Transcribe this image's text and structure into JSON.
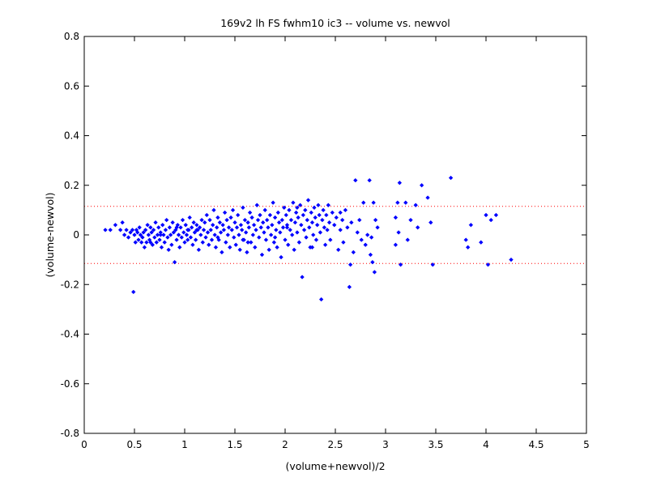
{
  "chart_data": {
    "type": "scatter",
    "title": "169v2 lh FS fwhm10 ic3 -- volume vs. newvol",
    "xlabel": "(volume+newvol)/2",
    "ylabel": "(volume-newvol)",
    "xlim": [
      0,
      5
    ],
    "ylim": [
      -0.8,
      0.8
    ],
    "xticks": [
      "0",
      "0.5",
      "1",
      "1.5",
      "2",
      "2.5",
      "3",
      "3.5",
      "4",
      "4.5",
      "5"
    ],
    "yticks": [
      "0.8",
      "0.6",
      "0.4",
      "0.2",
      "0",
      "-0.2",
      "-0.4",
      "-0.6",
      "-0.8"
    ],
    "grid": false,
    "marker_color": "#0000ff",
    "reference_line_color": "#ff0000",
    "reference_lines": [
      0.115,
      -0.115
    ],
    "series": [
      {
        "points": [
          [
            0.21,
            0.02
          ],
          [
            0.26,
            0.02
          ],
          [
            0.31,
            0.04
          ],
          [
            0.36,
            0.02
          ],
          [
            0.38,
            0.05
          ],
          [
            0.4,
            0.0
          ],
          [
            0.42,
            0.02
          ],
          [
            0.44,
            -0.01
          ],
          [
            0.46,
            0.01
          ],
          [
            0.48,
            0.02
          ],
          [
            0.49,
            -0.23
          ],
          [
            0.5,
            0.0
          ],
          [
            0.51,
            -0.03
          ],
          [
            0.52,
            0.02
          ],
          [
            0.53,
            0.01
          ],
          [
            0.54,
            -0.02
          ],
          [
            0.55,
            0.03
          ],
          [
            0.56,
            0.0
          ],
          [
            0.57,
            -0.03
          ],
          [
            0.58,
            -0.01
          ],
          [
            0.59,
            0.01
          ],
          [
            0.6,
            -0.05
          ],
          [
            0.61,
            0.02
          ],
          [
            0.62,
            -0.03
          ],
          [
            0.63,
            0.04
          ],
          [
            0.64,
            0.0
          ],
          [
            0.65,
            -0.02
          ],
          [
            0.66,
            0.03
          ],
          [
            0.67,
            0.01
          ],
          [
            0.68,
            -0.04
          ],
          [
            0.69,
            0.02
          ],
          [
            0.7,
            -0.01
          ],
          [
            0.71,
            0.05
          ],
          [
            0.72,
            -0.03
          ],
          [
            0.73,
            0.0
          ],
          [
            0.74,
            0.03
          ],
          [
            0.75,
            -0.02
          ],
          [
            0.76,
            0.01
          ],
          [
            0.77,
            -0.05
          ],
          [
            0.78,
            0.04
          ],
          [
            0.79,
            0.0
          ],
          [
            0.8,
            -0.03
          ],
          [
            0.81,
            0.02
          ],
          [
            0.82,
            0.06
          ],
          [
            0.83,
            -0.01
          ],
          [
            0.84,
            -0.06
          ],
          [
            0.85,
            0.03
          ],
          [
            0.86,
            0.0
          ],
          [
            0.87,
            -0.04
          ],
          [
            0.88,
            0.05
          ],
          [
            0.89,
            0.01
          ],
          [
            0.9,
            -0.11
          ],
          [
            0.91,
            0.02
          ],
          [
            0.92,
            -0.02
          ],
          [
            0.93,
            0.04
          ],
          [
            0.94,
            0.0
          ],
          [
            0.95,
            -0.05
          ],
          [
            0.96,
            0.03
          ],
          [
            0.97,
            -0.01
          ],
          [
            0.98,
            0.06
          ],
          [
            0.99,
            0.01
          ],
          [
            1.0,
            -0.03
          ],
          [
            1.01,
            0.04
          ],
          [
            1.02,
            0.0
          ],
          [
            1.03,
            -0.02
          ],
          [
            1.04,
            0.02
          ],
          [
            1.05,
            0.07
          ],
          [
            1.06,
            -0.01
          ],
          [
            1.07,
            0.03
          ],
          [
            1.08,
            -0.04
          ],
          [
            1.09,
            0.05
          ],
          [
            1.1,
            0.01
          ],
          [
            1.11,
            -0.02
          ],
          [
            1.12,
            0.04
          ],
          [
            1.13,
            0.02
          ],
          [
            1.14,
            -0.06
          ],
          [
            1.15,
            0.03
          ],
          [
            1.16,
            0.0
          ],
          [
            1.17,
            0.06
          ],
          [
            1.18,
            -0.03
          ],
          [
            1.19,
            0.02
          ],
          [
            1.2,
            0.05
          ],
          [
            1.21,
            -0.01
          ],
          [
            1.22,
            0.08
          ],
          [
            1.23,
            0.01
          ],
          [
            1.24,
            -0.04
          ],
          [
            1.25,
            0.06
          ],
          [
            1.26,
            0.02
          ],
          [
            1.27,
            -0.02
          ],
          [
            1.28,
            0.04
          ],
          [
            1.29,
            0.1
          ],
          [
            1.3,
            0.0
          ],
          [
            1.31,
            -0.05
          ],
          [
            1.32,
            0.03
          ],
          [
            1.33,
            0.07
          ],
          [
            1.34,
            -0.02
          ],
          [
            1.35,
            0.05
          ],
          [
            1.36,
            0.01
          ],
          [
            1.37,
            -0.07
          ],
          [
            1.38,
            0.04
          ],
          [
            1.39,
            0.02
          ],
          [
            1.4,
            0.09
          ],
          [
            1.41,
            -0.03
          ],
          [
            1.42,
            0.06
          ],
          [
            1.43,
            0.0
          ],
          [
            1.44,
            0.03
          ],
          [
            1.45,
            -0.05
          ],
          [
            1.46,
            0.07
          ],
          [
            1.47,
            0.02
          ],
          [
            1.48,
            0.1
          ],
          [
            1.49,
            -0.01
          ],
          [
            1.5,
            0.05
          ],
          [
            1.51,
            -0.04
          ],
          [
            1.52,
            0.03
          ],
          [
            1.53,
            0.08
          ],
          [
            1.54,
            0.0
          ],
          [
            1.55,
            -0.06
          ],
          [
            1.56,
            0.04
          ],
          [
            1.57,
            0.02
          ],
          [
            1.58,
            0.11
          ],
          [
            1.59,
            -0.02
          ],
          [
            1.6,
            0.06
          ],
          [
            1.61,
            0.01
          ],
          [
            1.62,
            -0.07
          ],
          [
            1.63,
            0.05
          ],
          [
            1.64,
            0.03
          ],
          [
            1.65,
            0.09
          ],
          [
            1.66,
            -0.03
          ],
          [
            1.67,
            0.07
          ],
          [
            1.68,
            0.0
          ],
          [
            1.69,
            0.04
          ],
          [
            1.7,
            -0.05
          ],
          [
            1.71,
            0.02
          ],
          [
            1.72,
            0.12
          ],
          [
            1.73,
            0.06
          ],
          [
            1.74,
            -0.01
          ],
          [
            1.75,
            0.08
          ],
          [
            1.76,
            0.03
          ],
          [
            1.77,
            -0.08
          ],
          [
            1.78,
            0.05
          ],
          [
            1.79,
            0.01
          ],
          [
            1.8,
            0.1
          ],
          [
            1.81,
            -0.02
          ],
          [
            1.82,
            0.06
          ],
          [
            1.83,
            0.03
          ],
          [
            1.84,
            -0.06
          ],
          [
            1.85,
            0.08
          ],
          [
            1.86,
            0.0
          ],
          [
            1.87,
            0.04
          ],
          [
            1.88,
            0.13
          ],
          [
            1.89,
            -0.03
          ],
          [
            1.9,
            0.07
          ],
          [
            1.91,
            0.02
          ],
          [
            1.92,
            -0.05
          ],
          [
            1.93,
            0.09
          ],
          [
            1.94,
            0.05
          ],
          [
            1.95,
            0.01
          ],
          [
            1.96,
            -0.09
          ],
          [
            1.97,
            0.06
          ],
          [
            1.98,
            0.03
          ],
          [
            1.99,
            0.11
          ],
          [
            2.0,
            -0.02
          ],
          [
            2.01,
            0.08
          ],
          [
            2.02,
            0.04
          ],
          [
            2.03,
            -0.04
          ],
          [
            2.04,
            0.1
          ],
          [
            2.05,
            0.02
          ],
          [
            2.06,
            0.06
          ],
          [
            2.07,
            0.0
          ],
          [
            2.08,
            0.13
          ],
          [
            2.09,
            -0.06
          ],
          [
            2.1,
            0.05
          ],
          [
            2.11,
            0.09
          ],
          [
            2.12,
            0.01
          ],
          [
            2.13,
            0.07
          ],
          [
            2.14,
            -0.03
          ],
          [
            2.15,
            0.12
          ],
          [
            2.16,
            0.04
          ],
          [
            2.17,
            -0.17
          ],
          [
            2.18,
            0.08
          ],
          [
            2.19,
            0.02
          ],
          [
            2.2,
            0.1
          ],
          [
            2.21,
            -0.01
          ],
          [
            2.22,
            0.06
          ],
          [
            2.23,
            0.14
          ],
          [
            2.24,
            0.03
          ],
          [
            2.25,
            -0.05
          ],
          [
            2.26,
            0.09
          ],
          [
            2.27,
            0.05
          ],
          [
            2.28,
            0.0
          ],
          [
            2.29,
            0.11
          ],
          [
            2.3,
            0.07
          ],
          [
            2.31,
            -0.02
          ],
          [
            2.32,
            0.04
          ],
          [
            2.33,
            0.12
          ],
          [
            2.34,
            0.08
          ],
          [
            2.35,
            0.01
          ],
          [
            2.36,
            -0.26
          ],
          [
            2.37,
            0.06
          ],
          [
            2.38,
            0.1
          ],
          [
            2.39,
            0.03
          ],
          [
            2.4,
            -0.04
          ],
          [
            2.41,
            0.08
          ],
          [
            2.42,
            0.02
          ],
          [
            2.43,
            0.12
          ],
          [
            2.44,
            0.05
          ],
          [
            2.45,
            -0.02
          ],
          [
            2.47,
            0.09
          ],
          [
            2.49,
            0.04
          ],
          [
            2.51,
            0.07
          ],
          [
            2.53,
            -0.06
          ],
          [
            2.55,
            0.02
          ],
          [
            2.57,
            0.06
          ],
          [
            2.58,
            -0.03
          ],
          [
            2.6,
            0.1
          ],
          [
            2.62,
            0.03
          ],
          [
            2.64,
            -0.21
          ],
          [
            2.65,
            -0.12
          ],
          [
            2.66,
            0.05
          ],
          [
            2.68,
            -0.07
          ],
          [
            2.7,
            0.22
          ],
          [
            2.72,
            0.01
          ],
          [
            2.74,
            0.06
          ],
          [
            2.76,
            -0.02
          ],
          [
            2.78,
            0.13
          ],
          [
            2.8,
            -0.04
          ],
          [
            2.82,
            0.0
          ],
          [
            2.84,
            0.22
          ],
          [
            2.85,
            -0.08
          ],
          [
            2.86,
            -0.01
          ],
          [
            2.87,
            -0.11
          ],
          [
            2.88,
            0.13
          ],
          [
            2.89,
            -0.15
          ],
          [
            2.9,
            0.06
          ],
          [
            2.92,
            0.03
          ],
          [
            3.1,
            -0.04
          ],
          [
            3.1,
            0.07
          ],
          [
            3.12,
            0.13
          ],
          [
            3.13,
            0.01
          ],
          [
            3.14,
            0.21
          ],
          [
            3.15,
            -0.12
          ],
          [
            3.2,
            0.13
          ],
          [
            3.22,
            -0.02
          ],
          [
            3.25,
            0.06
          ],
          [
            3.3,
            0.12
          ],
          [
            3.32,
            0.03
          ],
          [
            3.36,
            0.2
          ],
          [
            3.42,
            0.15
          ],
          [
            3.45,
            0.05
          ],
          [
            3.47,
            -0.12
          ],
          [
            3.65,
            0.23
          ],
          [
            3.8,
            -0.02
          ],
          [
            3.82,
            -0.05
          ],
          [
            3.85,
            0.04
          ],
          [
            3.95,
            -0.03
          ],
          [
            4.0,
            0.08
          ],
          [
            4.02,
            -0.12
          ],
          [
            4.05,
            0.06
          ],
          [
            4.1,
            0.08
          ],
          [
            4.25,
            -0.1
          ],
          [
            0.76,
            0.0
          ],
          [
            0.92,
            0.03
          ],
          [
            1.03,
            0.02
          ],
          [
            1.33,
            -0.01
          ],
          [
            1.63,
            -0.03
          ],
          [
            1.9,
            -0.01
          ],
          [
            2.12,
            0.11
          ],
          [
            2.27,
            -0.05
          ],
          [
            2.55,
            0.09
          ],
          [
            2.02,
            0.03
          ],
          [
            1.58,
            -0.02
          ],
          [
            1.12,
            0.02
          ],
          [
            0.66,
            -0.03
          ]
        ]
      }
    ]
  }
}
